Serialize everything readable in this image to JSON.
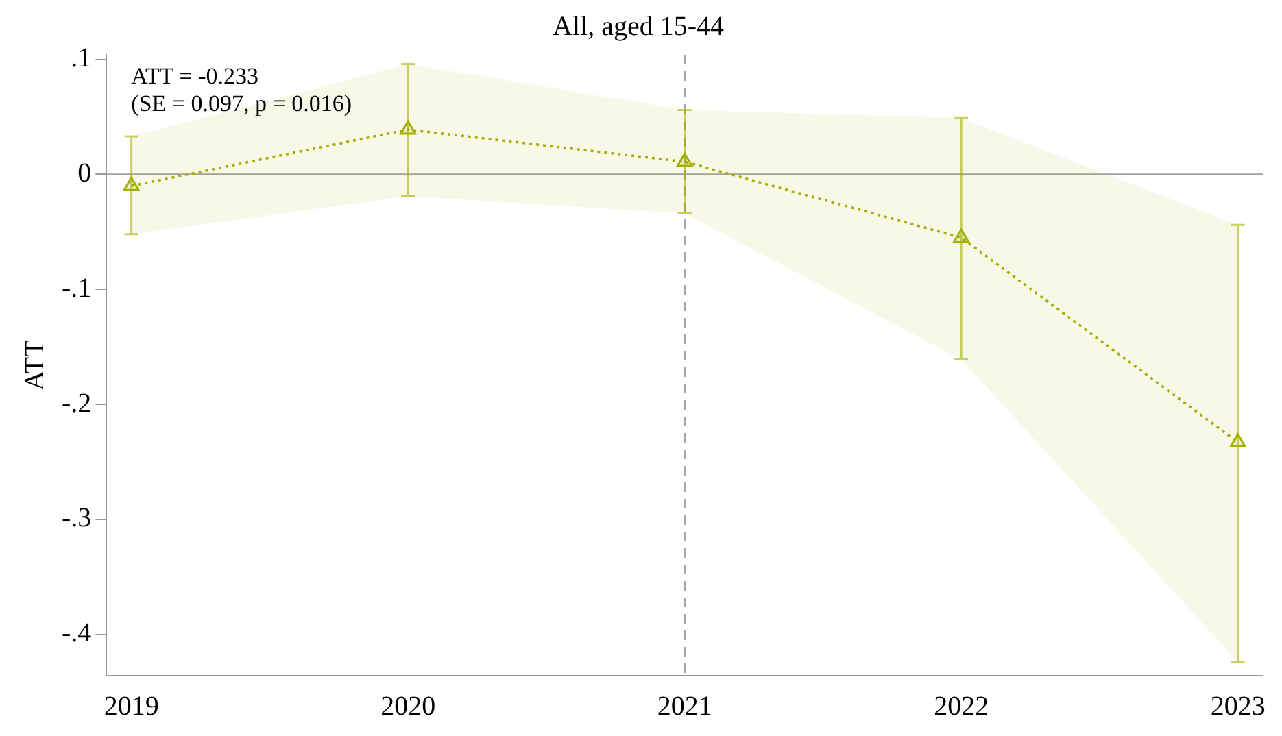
{
  "chart_data": {
    "type": "line",
    "title": "All, aged 15-44",
    "ylabel": "ATT",
    "x": [
      2019,
      2020,
      2021,
      2022,
      2023
    ],
    "series": [
      {
        "color": "#a3b000",
        "values": [
          -0.01,
          0.039,
          0.011,
          -0.055,
          -0.233
        ],
        "errors": [
          [
            -0.052,
            0.033
          ],
          [
            -0.019,
            0.096
          ],
          [
            -0.034,
            0.056
          ],
          [
            -0.161,
            0.049
          ],
          [
            -0.424,
            -0.044
          ]
        ],
        "lower": [
          -0.052,
          -0.019,
          -0.034,
          -0.161,
          -0.424
        ],
        "upper": [
          0.033,
          0.096,
          0.056,
          0.049,
          -0.044
        ]
      }
    ],
    "xlim": [
      2018.91,
      2023.09
    ],
    "xticks": [
      2019,
      2020,
      2021,
      2022,
      2023
    ],
    "ylim": [
      -0.436,
      0.104
    ],
    "yticks": [
      {
        "value": -0.4,
        "label": "-.4"
      },
      {
        "value": -0.3,
        "label": "-.3"
      },
      {
        "value": -0.2,
        "label": "-.2"
      },
      {
        "value": -0.1,
        "label": "-.1"
      },
      0,
      {
        "value": 0.1,
        "label": ".1"
      }
    ],
    "ref_lines": [
      {
        "axis": "y",
        "value": 0,
        "color": "#a0a0a0",
        "line_style": "solid"
      },
      {
        "axis": "x",
        "value": 2021,
        "color": "#a0a0a0",
        "line_style": "dashed"
      }
    ],
    "annotations": [
      "ATT = -0.233",
      "(SE = 0.097, p = 0.016)"
    ],
    "marker": "triangle",
    "line_style": "dotted",
    "legend": false,
    "grid": false
  }
}
